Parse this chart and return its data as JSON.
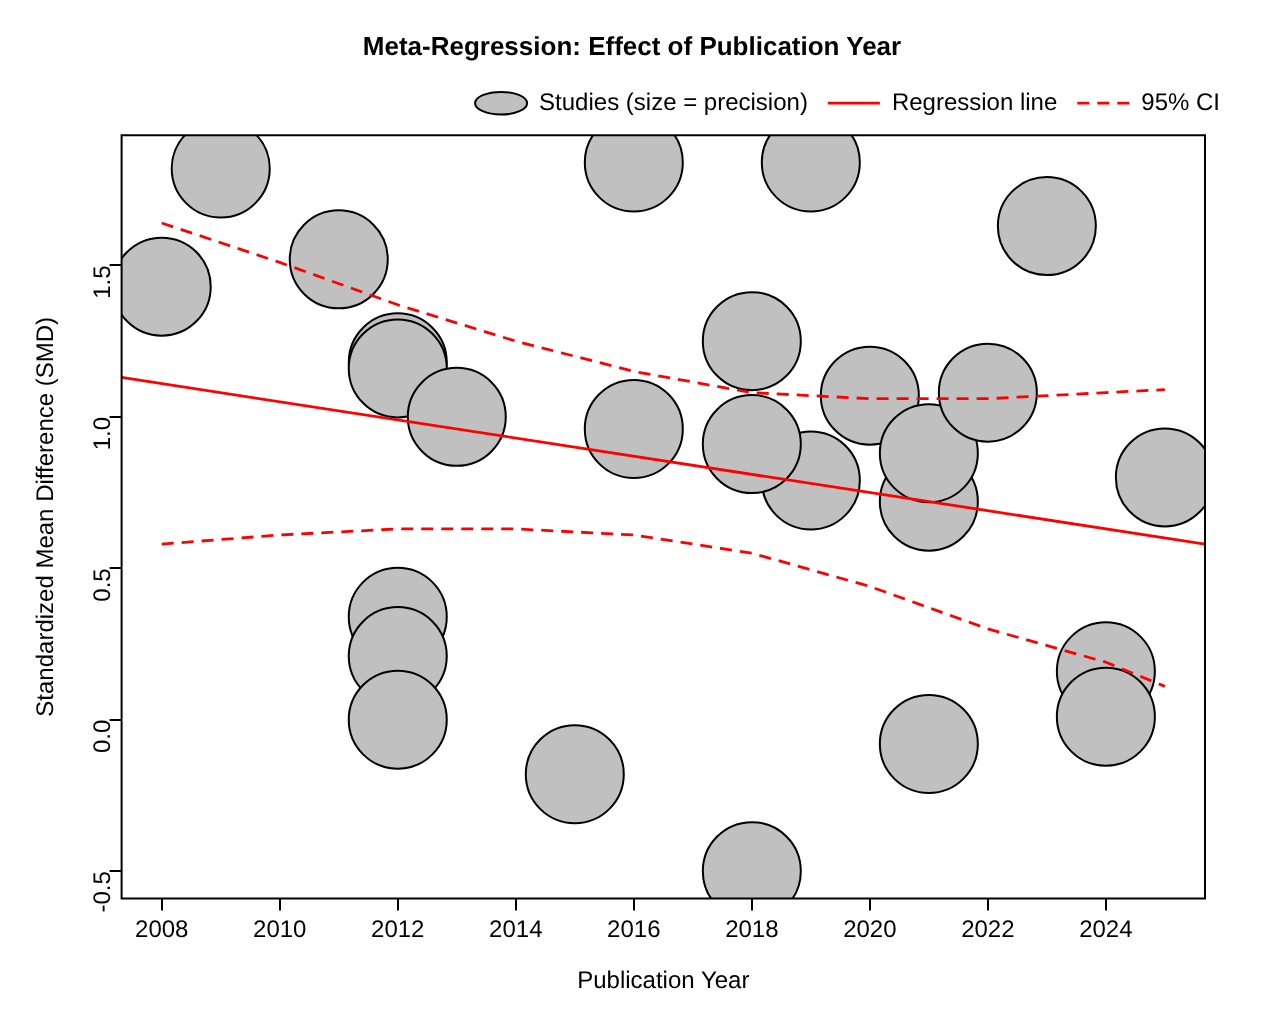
{
  "chart_data": {
    "type": "bubble",
    "title": "Meta-Regression: Effect of Publication Year",
    "xlabel": "Publication Year",
    "ylabel": "Standardized Mean Difference (SMD)",
    "xlim": [
      2007.32,
      2025.68
    ],
    "ylim": [
      -0.59,
      1.93
    ],
    "xticks": [
      2008,
      2010,
      2012,
      2014,
      2016,
      2018,
      2020,
      2022,
      2024
    ],
    "yticks": [
      -0.5,
      {
        "value": 0,
        "label": "0.0"
      },
      0.5,
      {
        "value": 1,
        "label": "1.0"
      },
      1.5
    ],
    "grid": false,
    "legend": "top right",
    "series": [
      {
        "name": "Studies (size = precision)",
        "color": "#c0c0c0",
        "x": [
          2008,
          2009,
          2011,
          2012,
          2012,
          2012,
          2012,
          2012,
          2013,
          2015,
          2016,
          2016,
          2018,
          2019,
          2018,
          2018,
          2019,
          2020,
          2021,
          2021,
          2021,
          2022,
          2023,
          2024,
          2024,
          2025
        ],
        "values": [
          1.43,
          1.82,
          1.52,
          1.18,
          1.16,
          0.34,
          0.21,
          0.0,
          1.0,
          -0.18,
          1.84,
          0.96,
          1.25,
          0.79,
          0.91,
          -0.5,
          1.84,
          1.07,
          0.72,
          0.88,
          -0.08,
          1.08,
          1.63,
          0.16,
          0.01,
          0.8
        ],
        "sizes": [
          1,
          1,
          1,
          1,
          1,
          1,
          1,
          1,
          1,
          1,
          1,
          1,
          1,
          1,
          1,
          1,
          1,
          1,
          1,
          1,
          1,
          1,
          1,
          1,
          1,
          1
        ]
      },
      {
        "name": "Regression line",
        "type": "line",
        "color": "#ff0000",
        "line_style": "solid",
        "marker": "none",
        "x": [
          2007.32,
          2025.68
        ],
        "values": [
          1.13,
          0.58
        ]
      },
      {
        "name": "95% CI",
        "type": "line",
        "color": "#ff0000",
        "line_style": "dashed",
        "marker": "none",
        "x": [
          2008,
          2010,
          2012,
          2014,
          2016,
          2018,
          2020,
          2022,
          2024,
          2025
        ],
        "values": [
          1.64,
          1.51,
          1.37,
          1.25,
          1.15,
          1.08,
          1.06,
          1.06,
          1.08,
          1.09
        ]
      },
      {
        "type": "line",
        "color": "#ff0000",
        "line_style": "dashed",
        "marker": "none",
        "x": [
          2008,
          2010,
          2012,
          2014,
          2016,
          2018,
          2020,
          2022,
          2024,
          2025
        ],
        "values": [
          0.58,
          0.61,
          0.63,
          0.63,
          0.61,
          0.55,
          0.44,
          0.3,
          0.19,
          0.11
        ]
      }
    ]
  }
}
